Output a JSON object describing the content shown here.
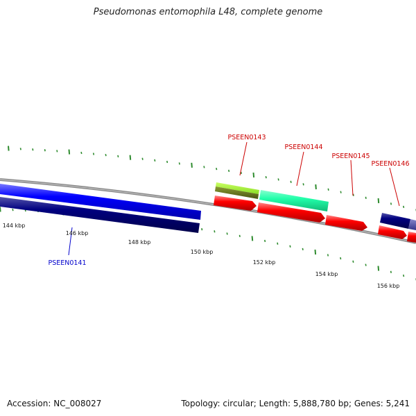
{
  "title": "Pseudomonas entomophila L48, complete genome",
  "footer": {
    "accession": "Accession: NC_008027",
    "topology": "Topology: circular; Length: 5,888,780 bp; Genes: 5,241"
  },
  "ruler": {
    "labels": [
      {
        "text": "144 kbp",
        "position_kbp": 144
      },
      {
        "text": "146 kbp",
        "position_kbp": 146
      },
      {
        "text": "148 kbp",
        "position_kbp": 148
      },
      {
        "text": "150 kbp",
        "position_kbp": 150
      },
      {
        "text": "152 kbp",
        "position_kbp": 152
      },
      {
        "text": "154 kbp",
        "position_kbp": 154
      },
      {
        "text": "156 kbp",
        "position_kbp": 156
      }
    ]
  },
  "genes": [
    {
      "label": "PSEEN0141",
      "label_color": "#0000cc"
    },
    {
      "label": "PSEEN0143",
      "label_color": "#cc0000"
    },
    {
      "label": "PSEEN0144",
      "label_color": "#cc0000"
    },
    {
      "label": "PSEEN0145",
      "label_color": "#cc0000"
    },
    {
      "label": "PSEEN0146",
      "label_color": "#cc0000"
    }
  ],
  "colors": {
    "backbone": "#8a8a8a",
    "ticks": "#2e8b2e",
    "cds_forward": "#ff0000",
    "cds_reverse_blue": "#0000ff",
    "cds_reverse_navy": "#000080",
    "feature_lime": "#99ee33",
    "feature_olive": "#667722",
    "feature_aqua": "#22ffaa",
    "feature_slate": "#4444aa"
  }
}
